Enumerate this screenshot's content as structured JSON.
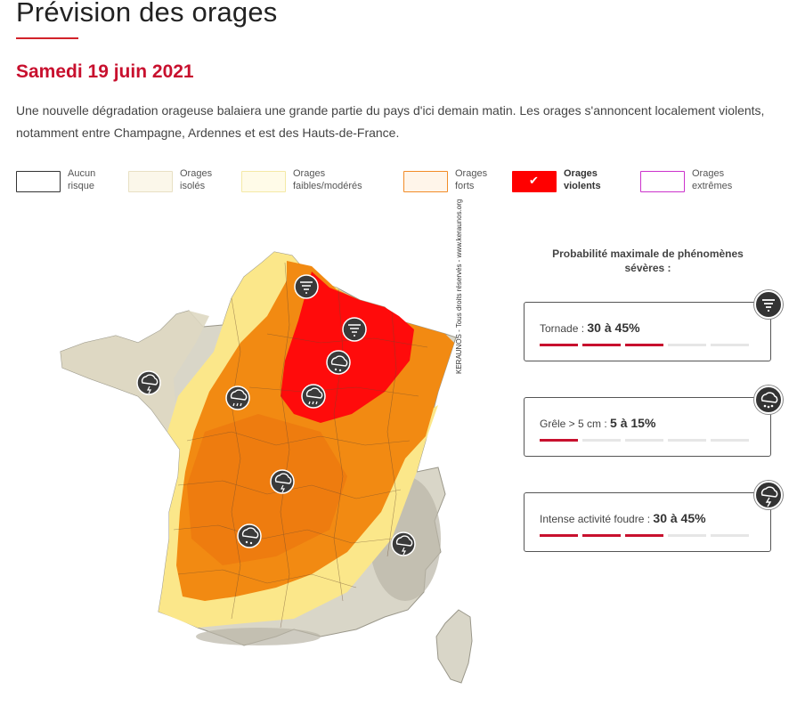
{
  "header": {
    "title": "Prévision des orages",
    "date": "Samedi 19 juin 2021",
    "description": "Une nouvelle dégradation orageuse balaiera une grande partie du pays d'ici demain matin. Les orages s'annoncent localement violents, notamment entre Champagne, Ardennes et est des Hauts-de-France."
  },
  "legend": {
    "items": [
      {
        "label": "Aucun\nrisque",
        "color": "#ffffff",
        "border": "#333333",
        "selected": false
      },
      {
        "label": "Orages\nisolés",
        "color": "#fbf7ea",
        "border": "#e8e0c4",
        "selected": false
      },
      {
        "label": "Orages\nfaibles/modérés",
        "color": "#fffbe8",
        "border": "#f4e9a6",
        "selected": false
      },
      {
        "label": "Orages\nforts",
        "color": "#fff5ea",
        "border": "#f28c28",
        "selected": false
      },
      {
        "label": "Orages\nviolents",
        "color": "#ff0000",
        "border": "#ff0000",
        "selected": true
      },
      {
        "label": "Orages\nextrêmes",
        "color": "#ffffff",
        "border": "#cc33cc",
        "selected": false
      }
    ]
  },
  "map": {
    "credit": "KERAUNOS - Tous droits réservés - www.keraunos.org",
    "colors": {
      "isolated": "#ded8c2",
      "weak": "#fbe78a",
      "strong": "#f28a12",
      "strong_dark": "#ea6d0c",
      "violent": "#ff0b0b",
      "base": "#d9d6c8"
    },
    "icons": [
      "tornado-icon",
      "hail-icon",
      "lightning-icon",
      "rain-icon"
    ]
  },
  "panel": {
    "title": "Probabilité maximale de phénomènes sévères :",
    "items": [
      {
        "label": "Tornade :",
        "value": "30 à 45%",
        "level": 3,
        "icon": "tornado-icon"
      },
      {
        "label": "Grêle > 5 cm :",
        "value": "5 à 15%",
        "level": 1,
        "icon": "hail-icon"
      },
      {
        "label": "Intense activité foudre :",
        "value": "30 à 45%",
        "level": 3,
        "icon": "lightning-icon"
      }
    ],
    "bar_count": 5
  }
}
